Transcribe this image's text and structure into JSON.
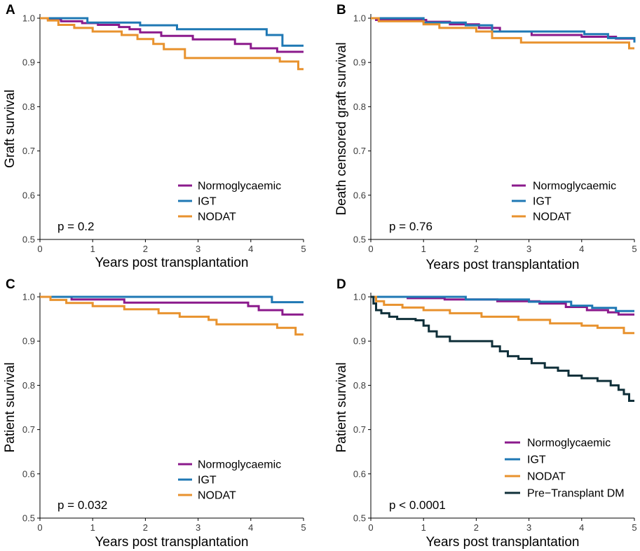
{
  "colors": {
    "normoglycaemic": "#8b1a8c",
    "igt": "#1f78b4",
    "nodat": "#e8922e",
    "pre_transplant_dm": "#10303a"
  },
  "chart_data": [
    {
      "panel": "A",
      "type": "line",
      "xlabel": "Years post transplantation",
      "ylabel": "Graft survival",
      "xlim": [
        0,
        5
      ],
      "ylim": [
        0.5,
        1.0
      ],
      "xticks": [
        "0",
        "1",
        "2",
        "3",
        "4",
        "5"
      ],
      "yticks": [
        "0.5",
        "0.6",
        "0.7",
        "0.8",
        "0.9",
        "1.0"
      ],
      "pvalue": "p = 0.2",
      "legend_position": "bottom-right",
      "series": [
        {
          "name": "Normoglycaemic",
          "color_key": "normoglycaemic",
          "x": [
            0,
            0.15,
            0.4,
            0.8,
            1.1,
            1.5,
            1.7,
            1.9,
            2.3,
            2.9,
            3.7,
            4.0,
            4.5,
            5
          ],
          "y": [
            1.0,
            0.997,
            0.993,
            0.989,
            0.985,
            0.98,
            0.975,
            0.968,
            0.96,
            0.952,
            0.942,
            0.932,
            0.924,
            0.924
          ]
        },
        {
          "name": "IGT",
          "color_key": "igt",
          "x": [
            0,
            0.9,
            1.9,
            2.6,
            4.3,
            4.6,
            5
          ],
          "y": [
            1.0,
            0.99,
            0.984,
            0.975,
            0.962,
            0.938,
            0.938
          ]
        },
        {
          "name": "NODAT",
          "color_key": "nodat",
          "x": [
            0,
            0.15,
            0.35,
            0.65,
            1.0,
            1.55,
            1.85,
            2.15,
            2.35,
            2.75,
            4.55,
            4.9,
            5
          ],
          "y": [
            1.0,
            0.995,
            0.985,
            0.978,
            0.97,
            0.962,
            0.953,
            0.942,
            0.93,
            0.91,
            0.902,
            0.885,
            0.885
          ]
        }
      ]
    },
    {
      "panel": "B",
      "type": "line",
      "xlabel": "Years post transplantation",
      "ylabel": "Death censored graft survival",
      "xlim": [
        0,
        5
      ],
      "ylim": [
        0.5,
        1.0
      ],
      "xticks": [
        "0",
        "1",
        "2",
        "3",
        "4",
        "5"
      ],
      "yticks": [
        "0.5",
        "0.6",
        "0.7",
        "0.8",
        "0.9",
        "1.0"
      ],
      "pvalue": "p = 0.76",
      "legend_position": "bottom-right",
      "series": [
        {
          "name": "Normoglycaemic",
          "color_key": "normoglycaemic",
          "x": [
            0,
            0.1,
            1.05,
            1.5,
            2.05,
            2.45,
            3.05,
            4.0,
            4.65,
            5
          ],
          "y": [
            1.0,
            0.996,
            0.992,
            0.986,
            0.978,
            0.97,
            0.962,
            0.958,
            0.954,
            0.954
          ]
        },
        {
          "name": "IGT",
          "color_key": "igt",
          "x": [
            0,
            1.0,
            1.8,
            2.3,
            4.05,
            4.5,
            5
          ],
          "y": [
            1.0,
            0.99,
            0.984,
            0.97,
            0.964,
            0.955,
            0.945
          ]
        },
        {
          "name": "NODAT",
          "color_key": "nodat",
          "x": [
            0,
            0.15,
            1.0,
            1.3,
            2.0,
            2.3,
            2.85,
            4.9,
            5
          ],
          "y": [
            1.0,
            0.993,
            0.986,
            0.978,
            0.97,
            0.955,
            0.945,
            0.932,
            0.932
          ]
        }
      ]
    },
    {
      "panel": "C",
      "type": "line",
      "xlabel": "Years post transplantation",
      "ylabel": "Patient survival",
      "xlim": [
        0,
        5
      ],
      "ylim": [
        0.5,
        1.0
      ],
      "xticks": [
        "0",
        "1",
        "2",
        "3",
        "4",
        "5"
      ],
      "yticks": [
        "0.5",
        "0.6",
        "0.7",
        "0.8",
        "0.9",
        "1.0"
      ],
      "pvalue": "p = 0.032",
      "legend_position": "bottom-right",
      "series": [
        {
          "name": "Normoglycaemic",
          "color_key": "normoglycaemic",
          "x": [
            0,
            0.6,
            1.6,
            3.95,
            4.15,
            4.6,
            5
          ],
          "y": [
            1.0,
            0.994,
            0.987,
            0.979,
            0.97,
            0.96,
            0.96
          ]
        },
        {
          "name": "IGT",
          "color_key": "igt",
          "x": [
            0,
            4.4,
            5
          ],
          "y": [
            1.0,
            0.988,
            0.988
          ]
        },
        {
          "name": "NODAT",
          "color_key": "nodat",
          "x": [
            0,
            0.2,
            0.5,
            1.0,
            1.6,
            2.25,
            2.65,
            3.2,
            3.35,
            4.5,
            4.85,
            5
          ],
          "y": [
            1.0,
            0.993,
            0.986,
            0.979,
            0.972,
            0.963,
            0.955,
            0.948,
            0.938,
            0.93,
            0.915,
            0.915
          ]
        }
      ]
    },
    {
      "panel": "D",
      "type": "line",
      "xlabel": "Years post transplantation",
      "ylabel": "Patient survival",
      "xlim": [
        0,
        5
      ],
      "ylim": [
        0.5,
        1.0
      ],
      "xticks": [
        "0",
        "1",
        "2",
        "3",
        "4",
        "5"
      ],
      "yticks": [
        "0.5",
        "0.6",
        "0.7",
        "0.8",
        "0.9",
        "1.0"
      ],
      "pvalue": "p < 0.0001",
      "legend_position": "bottom-right",
      "series": [
        {
          "name": "Normoglycaemic",
          "color_key": "normoglycaemic",
          "x": [
            0,
            0.7,
            1.4,
            2.4,
            3.2,
            3.7,
            4.1,
            4.5,
            4.7,
            5
          ],
          "y": [
            1.0,
            0.997,
            0.994,
            0.99,
            0.985,
            0.977,
            0.97,
            0.965,
            0.96,
            0.96
          ]
        },
        {
          "name": "IGT",
          "color_key": "igt",
          "x": [
            0,
            1.8,
            3.0,
            3.8,
            4.2,
            4.65,
            5
          ],
          "y": [
            1.0,
            0.994,
            0.989,
            0.98,
            0.975,
            0.968,
            0.968
          ]
        },
        {
          "name": "NODAT",
          "color_key": "nodat",
          "x": [
            0,
            0.1,
            0.25,
            0.6,
            1.0,
            1.5,
            2.1,
            2.8,
            3.4,
            4.0,
            4.3,
            4.8,
            5
          ],
          "y": [
            1.0,
            0.99,
            0.982,
            0.976,
            0.97,
            0.963,
            0.955,
            0.948,
            0.94,
            0.935,
            0.93,
            0.918,
            0.918
          ]
        },
        {
          "name": "Pre−Transplant DM",
          "color_key": "pre_transplant_dm",
          "x": [
            0,
            0.05,
            0.1,
            0.2,
            0.35,
            0.5,
            0.85,
            1.0,
            1.1,
            1.25,
            1.5,
            2.3,
            2.45,
            2.6,
            2.8,
            3.05,
            3.3,
            3.55,
            3.75,
            4.0,
            4.3,
            4.55,
            4.7,
            4.8,
            4.9,
            5
          ],
          "y": [
            1.0,
            0.985,
            0.97,
            0.963,
            0.955,
            0.95,
            0.947,
            0.935,
            0.922,
            0.91,
            0.9,
            0.888,
            0.877,
            0.866,
            0.86,
            0.85,
            0.84,
            0.833,
            0.822,
            0.816,
            0.81,
            0.8,
            0.79,
            0.78,
            0.765,
            0.765
          ]
        }
      ]
    }
  ]
}
